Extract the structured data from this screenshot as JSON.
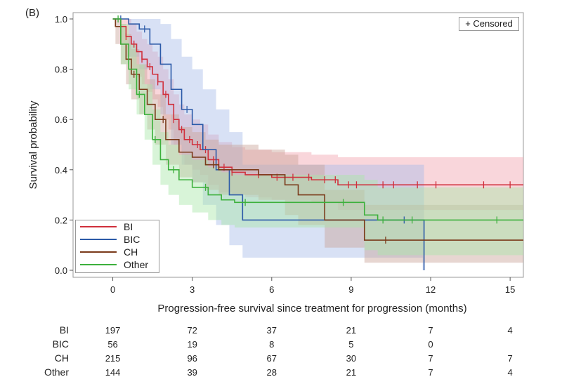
{
  "panel_label": "(B)",
  "censor_note": "+ Censored",
  "colors": {
    "BI": "#d0303c",
    "BIC": "#2c5aa8",
    "CH": "#7a3a1a",
    "Other": "#3cb03c"
  },
  "band_colors": {
    "BI": "#f2a5b0",
    "BIC": "#a9bde8",
    "CH": "#c9a49a",
    "Other": "#a8e6a8"
  },
  "chart_data": {
    "type": "line",
    "step": true,
    "title": "",
    "xlabel": "Progression-free survival since treatment for progression (months)",
    "ylabel": "Survival probability",
    "xlim": [
      -1.5,
      15.5
    ],
    "ylim": [
      0,
      1.0
    ],
    "x_ticks": [
      "0",
      "3",
      "6",
      "9",
      "12",
      "15"
    ],
    "y_ticks": [
      "0.0",
      "0.2",
      "0.4",
      "0.6",
      "0.8",
      "1.0"
    ],
    "grid": false,
    "legend_position": "bottom-left",
    "series": [
      {
        "name": "BI",
        "x": [
          0,
          0.3,
          0.5,
          0.7,
          0.9,
          1.1,
          1.3,
          1.5,
          1.7,
          1.9,
          2.1,
          2.3,
          2.5,
          2.7,
          3.0,
          3.3,
          3.6,
          4.0,
          4.5,
          5.0,
          6.0,
          7.5,
          8.5,
          9.5,
          15.5
        ],
        "y": [
          1.0,
          0.97,
          0.93,
          0.9,
          0.87,
          0.84,
          0.81,
          0.78,
          0.75,
          0.7,
          0.66,
          0.6,
          0.56,
          0.52,
          0.5,
          0.48,
          0.44,
          0.41,
          0.39,
          0.38,
          0.37,
          0.36,
          0.34,
          0.34,
          0.34
        ],
        "censored_x": [
          0.5,
          0.8,
          1.1,
          1.4,
          1.7,
          2.0,
          2.3,
          2.6,
          2.9,
          3.2,
          3.5,
          3.8,
          4.2,
          4.5,
          5.5,
          6.2,
          6.8,
          7.4,
          8.0,
          8.4,
          8.9,
          9.2,
          10.2,
          10.6,
          11.5,
          12.2,
          14.0,
          15.0
        ],
        "band_low": [
          1.0,
          0.9,
          0.85,
          0.8,
          0.77,
          0.74,
          0.71,
          0.68,
          0.65,
          0.6,
          0.56,
          0.5,
          0.46,
          0.42,
          0.4,
          0.38,
          0.34,
          0.31,
          0.3,
          0.29,
          0.28,
          0.27,
          0.24,
          0.24,
          0.24
        ],
        "band_high": [
          1.0,
          1.0,
          1.0,
          0.98,
          0.95,
          0.92,
          0.9,
          0.87,
          0.85,
          0.8,
          0.76,
          0.7,
          0.66,
          0.62,
          0.6,
          0.58,
          0.54,
          0.51,
          0.49,
          0.48,
          0.47,
          0.46,
          0.45,
          0.45,
          0.45
        ]
      },
      {
        "name": "BIC",
        "x": [
          0,
          0.6,
          1.0,
          1.4,
          1.8,
          2.2,
          2.6,
          3.0,
          3.4,
          3.9,
          4.4,
          4.9,
          5.5,
          8.0,
          11.7,
          11.75
        ],
        "y": [
          1.0,
          0.98,
          0.96,
          0.9,
          0.82,
          0.72,
          0.64,
          0.58,
          0.48,
          0.4,
          0.3,
          0.2,
          0.2,
          0.2,
          0.2,
          0.0
        ],
        "censored_x": [
          0.3,
          1.2,
          2.8,
          11.0
        ],
        "band_low": [
          1.0,
          0.85,
          0.8,
          0.72,
          0.62,
          0.5,
          0.42,
          0.35,
          0.26,
          0.18,
          0.1,
          0.05,
          0.05,
          0.05,
          0.0,
          0.0
        ],
        "band_high": [
          1.0,
          1.0,
          1.0,
          1.0,
          0.98,
          0.92,
          0.85,
          0.8,
          0.72,
          0.64,
          0.55,
          0.42,
          0.42,
          0.42,
          0.42,
          0.0
        ]
      },
      {
        "name": "CH",
        "x": [
          0,
          0.1,
          0.3,
          0.5,
          0.7,
          1.0,
          1.3,
          1.6,
          2.0,
          2.5,
          3.0,
          3.5,
          4.0,
          5.5,
          6.5,
          7.0,
          8.0,
          9.5,
          15.5
        ],
        "y": [
          1.0,
          0.97,
          0.9,
          0.84,
          0.78,
          0.72,
          0.66,
          0.6,
          0.52,
          0.47,
          0.45,
          0.42,
          0.4,
          0.38,
          0.34,
          0.3,
          0.2,
          0.12,
          0.12
        ],
        "censored_x": [
          0.8,
          1.9,
          3.8,
          10.3
        ],
        "band_low": [
          1.0,
          0.9,
          0.82,
          0.74,
          0.68,
          0.62,
          0.56,
          0.5,
          0.42,
          0.37,
          0.35,
          0.32,
          0.3,
          0.28,
          0.22,
          0.18,
          0.09,
          0.03,
          0.03
        ],
        "band_high": [
          1.0,
          1.0,
          0.98,
          0.94,
          0.88,
          0.82,
          0.76,
          0.7,
          0.62,
          0.57,
          0.55,
          0.52,
          0.5,
          0.48,
          0.46,
          0.42,
          0.32,
          0.26,
          0.26
        ]
      },
      {
        "name": "Other",
        "x": [
          0,
          0.3,
          0.6,
          0.9,
          1.2,
          1.5,
          1.8,
          2.1,
          2.5,
          3.0,
          3.6,
          4.1,
          4.6,
          5.2,
          7.0,
          8.5,
          9.5,
          10.0,
          15.5
        ],
        "y": [
          1.0,
          0.9,
          0.8,
          0.7,
          0.62,
          0.52,
          0.44,
          0.4,
          0.36,
          0.33,
          0.3,
          0.28,
          0.27,
          0.27,
          0.27,
          0.27,
          0.22,
          0.2,
          0.2
        ],
        "censored_x": [
          0.2,
          1.0,
          1.6,
          2.3,
          3.5,
          5.0,
          8.7,
          10.2,
          11.3,
          14.5
        ],
        "band_low": [
          1.0,
          0.82,
          0.72,
          0.62,
          0.52,
          0.42,
          0.34,
          0.3,
          0.26,
          0.23,
          0.2,
          0.18,
          0.17,
          0.17,
          0.17,
          0.17,
          0.08,
          0.06,
          0.06
        ],
        "band_high": [
          1.0,
          0.98,
          0.9,
          0.82,
          0.74,
          0.64,
          0.55,
          0.5,
          0.46,
          0.44,
          0.41,
          0.39,
          0.38,
          0.38,
          0.38,
          0.38,
          0.36,
          0.33,
          0.33
        ]
      }
    ]
  },
  "risk_table": {
    "columns_x": [
      0,
      3,
      6,
      9,
      12,
      15
    ],
    "rows": [
      {
        "label": "BI",
        "values": [
          "197",
          "72",
          "37",
          "21",
          "7",
          "4"
        ]
      },
      {
        "label": "BIC",
        "values": [
          "56",
          "19",
          "8",
          "5",
          "0",
          ""
        ]
      },
      {
        "label": "CH",
        "values": [
          "215",
          "96",
          "67",
          "30",
          "7",
          "7"
        ]
      },
      {
        "label": "Other",
        "values": [
          "144",
          "39",
          "28",
          "21",
          "7",
          "4"
        ]
      }
    ]
  }
}
